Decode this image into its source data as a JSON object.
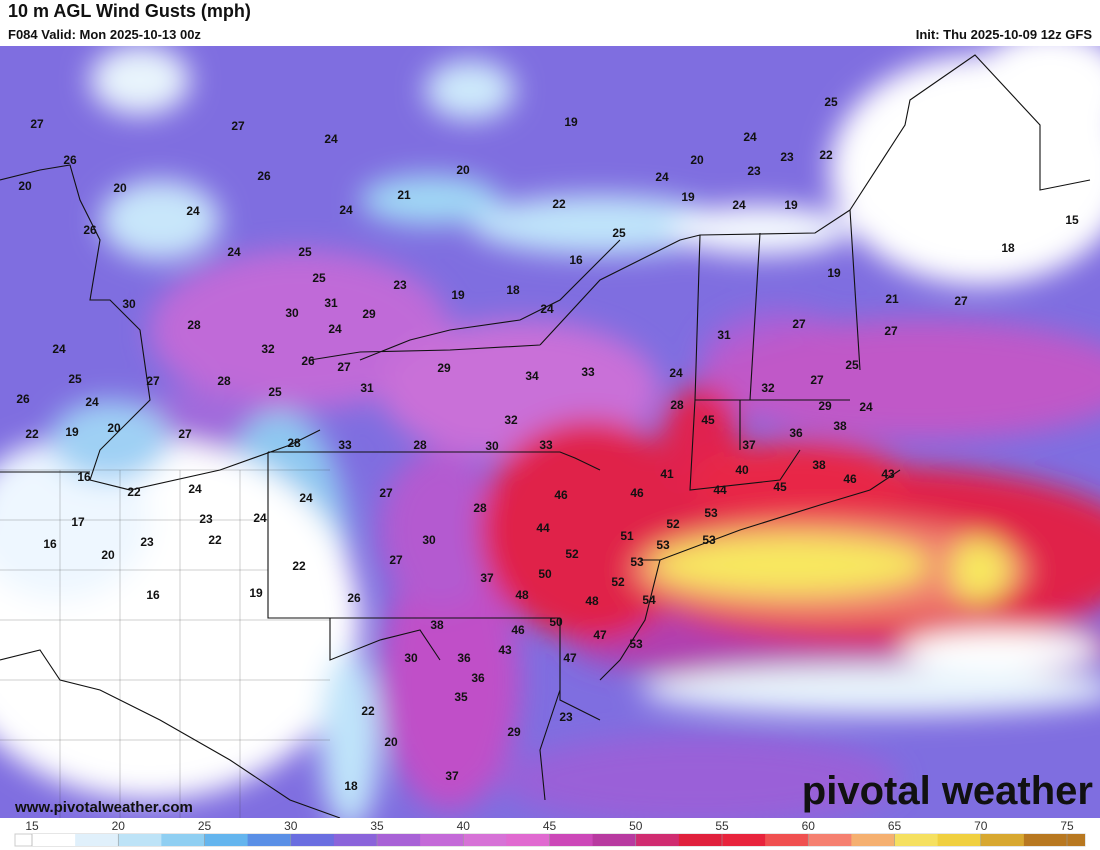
{
  "header": {
    "title": "10 m AGL Wind Gusts (mph)",
    "valid": "F084 Valid: Mon 2025-10-13 00z",
    "init": "Init: Thu 2025-10-09 12z GFS"
  },
  "map": {
    "gust_labels": [
      27,
      27,
      24,
      19,
      25,
      24,
      26,
      26,
      20,
      20,
      23,
      22,
      20,
      20,
      21,
      24,
      23,
      24,
      24,
      22,
      19,
      24,
      19,
      15,
      26,
      24,
      25,
      25,
      16,
      18,
      19,
      25,
      23,
      19,
      18,
      21,
      30,
      31,
      30,
      29,
      24,
      27,
      28,
      24,
      27,
      27,
      31,
      24,
      32,
      26,
      27,
      29,
      34,
      33,
      24,
      25,
      25,
      27,
      28,
      31,
      25,
      32,
      27,
      26,
      24,
      28,
      29,
      24,
      22,
      19,
      20,
      27,
      32,
      45,
      36,
      38,
      28,
      33,
      28,
      30,
      33,
      37,
      38,
      16,
      40,
      41,
      46,
      43,
      22,
      24,
      46,
      46,
      44,
      45,
      24,
      27,
      28,
      53,
      17,
      23,
      24,
      44,
      52,
      51,
      16,
      22,
      30,
      53,
      53,
      20,
      23,
      52,
      27,
      53,
      22,
      50,
      37,
      52,
      16,
      19,
      48,
      26,
      54,
      48,
      38,
      50,
      46,
      47,
      30,
      36,
      53,
      43,
      47,
      36,
      35,
      22,
      23,
      20,
      29,
      37,
      18
    ]
  },
  "footer": {
    "website": "www.pivotalweather.com",
    "logo": "pivotal weather"
  },
  "colorbar": {
    "ticks": [
      15,
      20,
      25,
      30,
      35,
      40,
      45,
      50,
      55,
      60,
      65,
      70,
      75
    ],
    "colors": [
      "#ffffff",
      "#e0f0fb",
      "#bde3f7",
      "#8fcff2",
      "#64b5ee",
      "#5a8fe6",
      "#6a6ee0",
      "#8a64da",
      "#a862d6",
      "#c46ad8",
      "#d672d6",
      "#e06ad0",
      "#cc48b8",
      "#b83aa0",
      "#d02c70",
      "#e0203c",
      "#e8243c",
      "#f05050",
      "#f58070",
      "#f5b070",
      "#f5e060",
      "#f0d040",
      "#d8a830",
      "#b87820"
    ]
  }
}
